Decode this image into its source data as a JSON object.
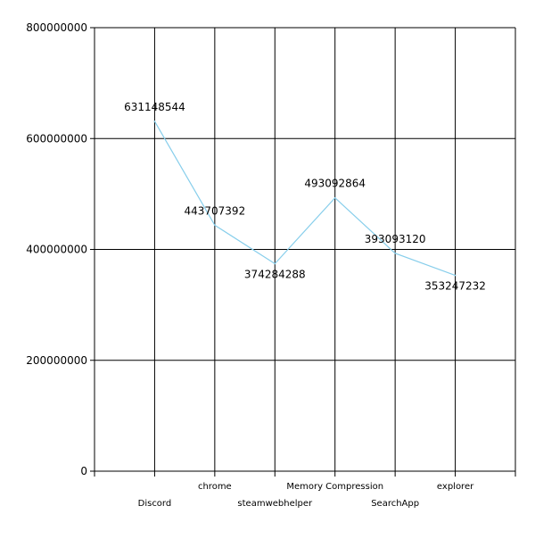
{
  "chart_data": {
    "type": "line",
    "title": "",
    "xlabel": "",
    "ylabel": "",
    "categories": [
      "Discord",
      "chrome",
      "steamwebhelper",
      "Memory Compression",
      "SearchApp",
      "explorer"
    ],
    "series": [
      {
        "values": [
          631148544,
          443707392,
          374284288,
          493092864,
          393093120,
          353247232
        ]
      }
    ],
    "data_labels": [
      "631148544",
      "443707392",
      "374284288",
      "493092864",
      "393093120",
      "353247232"
    ],
    "ylim": [
      0,
      800000000
    ],
    "y_ticks": [
      0,
      200000000,
      400000000,
      600000000,
      800000000
    ],
    "y_tick_labels": [
      "0",
      "200000000",
      "400000000",
      "600000000",
      "800000000"
    ],
    "grid": true,
    "legend": "none",
    "colors": {
      "line": "#87CEEB",
      "grid": "#000000",
      "background": "#ffffff"
    }
  }
}
